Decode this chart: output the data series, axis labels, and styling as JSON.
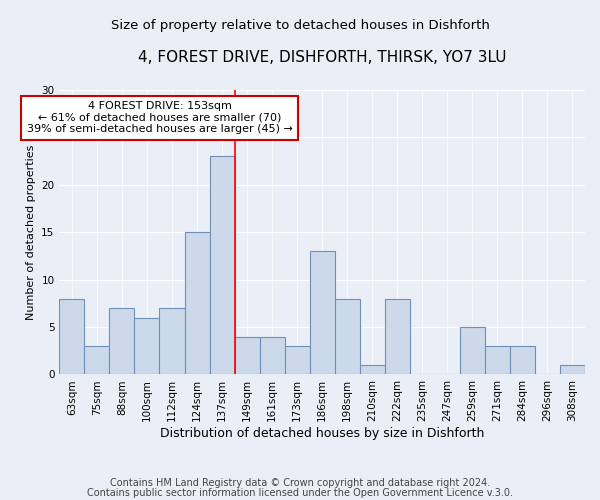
{
  "title": "4, FOREST DRIVE, DISHFORTH, THIRSK, YO7 3LU",
  "subtitle": "Size of property relative to detached houses in Dishforth",
  "xlabel": "Distribution of detached houses by size in Dishforth",
  "ylabel": "Number of detached properties",
  "categories": [
    "63sqm",
    "75sqm",
    "88sqm",
    "100sqm",
    "112sqm",
    "124sqm",
    "137sqm",
    "149sqm",
    "161sqm",
    "173sqm",
    "186sqm",
    "198sqm",
    "210sqm",
    "222sqm",
    "235sqm",
    "247sqm",
    "259sqm",
    "271sqm",
    "284sqm",
    "296sqm",
    "308sqm"
  ],
  "values": [
    8,
    3,
    7,
    6,
    7,
    15,
    23,
    4,
    4,
    3,
    13,
    8,
    1,
    8,
    0,
    0,
    5,
    3,
    3,
    0,
    1
  ],
  "bar_color": "#ccd9ea",
  "bar_edge_color": "#7090b8",
  "red_line_x": 6.5,
  "annotation_text": "4 FOREST DRIVE: 153sqm\n← 61% of detached houses are smaller (70)\n39% of semi-detached houses are larger (45) →",
  "annotation_box_color": "#ffffff",
  "annotation_box_edge": "#cc0000",
  "ylim": [
    0,
    30
  ],
  "yticks": [
    0,
    5,
    10,
    15,
    20,
    25,
    30
  ],
  "footer1": "Contains HM Land Registry data © Crown copyright and database right 2024.",
  "footer2": "Contains public sector information licensed under the Open Government Licence v.3.0.",
  "background_color": "#eaeff7",
  "title_fontsize": 11,
  "subtitle_fontsize": 9.5,
  "xlabel_fontsize": 9,
  "ylabel_fontsize": 8,
  "tick_fontsize": 7.5,
  "annotation_fontsize": 8,
  "footer_fontsize": 7
}
